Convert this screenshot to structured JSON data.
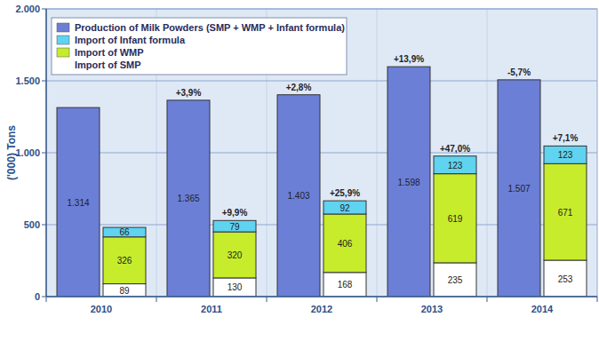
{
  "chart_data": {
    "type": "bar",
    "y_label": "('000) Tons",
    "categories": [
      "2010",
      "2011",
      "2012",
      "2013",
      "2014"
    ],
    "ylim": [
      0,
      2000
    ],
    "yticks": [
      0,
      500,
      {
        "value": 1000,
        "label": "1.000"
      },
      {
        "value": 1500,
        "label": "1.500"
      },
      {
        "value": 2000,
        "label": "2.000"
      }
    ],
    "grid": true,
    "legend": "top-left",
    "stacked": true,
    "data_labels": true,
    "series": [
      {
        "name": "Production of Milk Powders (SMP + WMP + Infant formula)",
        "type": "bar",
        "color": "#6b7fd7",
        "values": [
          1314,
          1365,
          1403,
          1598,
          1507
        ],
        "value_labels": [
          "1.314",
          "1.365",
          "1.403",
          "1.598",
          "1.507"
        ],
        "annotations": [
          null,
          "+3,9%",
          "+2,8%",
          "+13,9%",
          "-5,7%"
        ]
      },
      {
        "name": "Import of Infant formula",
        "type": "stacked",
        "color": "#5fd3f0",
        "values": [
          66,
          79,
          92,
          123,
          123
        ],
        "annotations": [
          null,
          "+9,9%",
          "+25,9%",
          "+47,0%",
          "+7,1%"
        ]
      },
      {
        "name": "Import of WMP",
        "type": "stacked",
        "color": "#c6ec2c",
        "values": [
          326,
          320,
          406,
          619,
          671
        ]
      },
      {
        "name": "Import of SMP",
        "type": "stacked",
        "color": "#ffffff",
        "values": [
          89,
          130,
          168,
          235,
          253
        ]
      }
    ]
  }
}
